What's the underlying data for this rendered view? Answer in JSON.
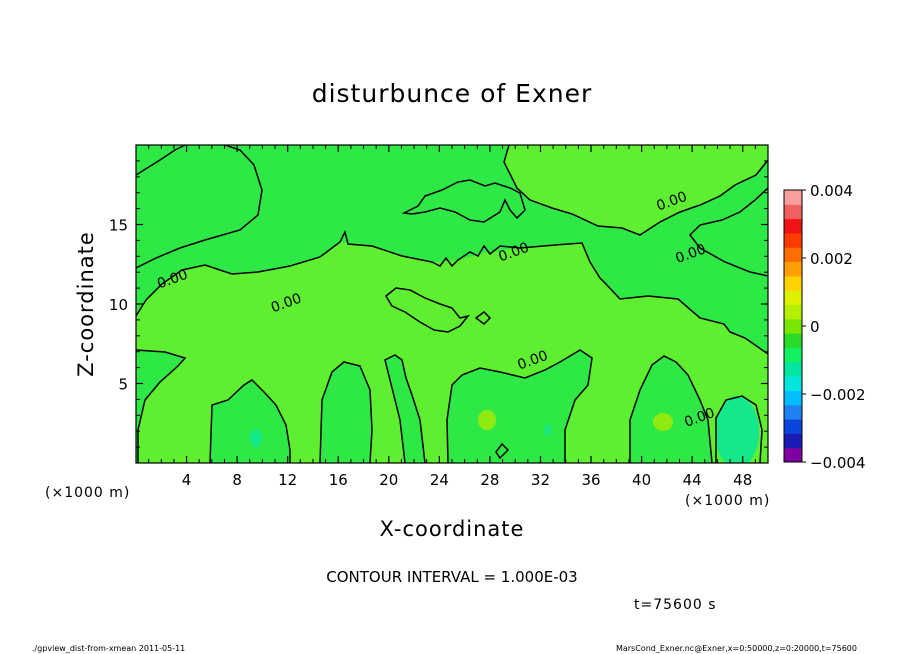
{
  "chart_data": {
    "type": "heatmap",
    "title": "disturbunce of Exner",
    "xlabel": "X-coordinate",
    "ylabel": "Z-coordinate",
    "x_unit_label": "(×1000 m)",
    "y_unit_label": "(×1000 m)",
    "xlim": [
      0,
      50
    ],
    "ylim": [
      0,
      20
    ],
    "x_ticks": [
      4,
      8,
      12,
      16,
      20,
      24,
      28,
      32,
      36,
      40,
      44,
      48
    ],
    "y_ticks": [
      5,
      10,
      15
    ],
    "x_tick_labels": [
      "4",
      "8",
      "12",
      "16",
      "20",
      "24",
      "28",
      "32",
      "36",
      "40",
      "44",
      "48"
    ],
    "y_tick_labels": [
      "5",
      "10",
      "15"
    ],
    "contour_interval_text": "CONTOUR INTERVAL = 1.000E-03",
    "time_text": "t=75600 s",
    "contour_label": "0.00",
    "contour_labels": [
      {
        "x": 3.0,
        "z": 11.3
      },
      {
        "x": 12.0,
        "z": 9.8
      },
      {
        "x": 30.0,
        "z": 13.0
      },
      {
        "x": 31.5,
        "z": 6.2
      },
      {
        "x": 42.5,
        "z": 16.2
      },
      {
        "x": 44.0,
        "z": 12.9
      },
      {
        "x": 44.7,
        "z": 2.6
      }
    ],
    "colorbar": {
      "min": -0.004,
      "max": 0.004,
      "tick_labels": [
        "0.004",
        "0.002",
        "0",
        "−0.002",
        "−0.004"
      ],
      "tick_values": [
        0.004,
        0.002,
        0,
        -0.002,
        -0.004
      ],
      "colors": [
        "#8000a0",
        "#1c1cb4",
        "#0a46dc",
        "#1e82f0",
        "#00beff",
        "#00e6dc",
        "#00e6a0",
        "#14f064",
        "#28dc28",
        "#78e600",
        "#b4f000",
        "#dcf000",
        "#ffd200",
        "#ffa000",
        "#ff6e00",
        "#ff3c00",
        "#f01414",
        "#f06060",
        "#f8a0a0"
      ]
    },
    "regions_value": {
      "background": 0.0006,
      "negative_bands": -0.0003,
      "min_patch": -0.0007,
      "max_patch": 0.0012
    }
  },
  "footer": {
    "left": "./gpview_dist-from-xmean  2011-05-11",
    "right": "MarsCond_Exner.nc@Exner,x=0:50000,z=0:20000,t=75600"
  }
}
